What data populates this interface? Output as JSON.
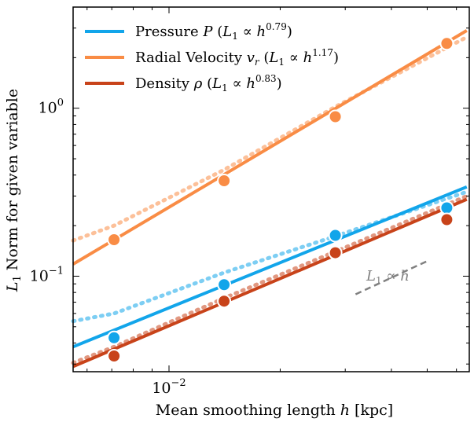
{
  "chart_data": {
    "type": "line",
    "xscale": "log",
    "yscale": "log",
    "xlim": [
      0.0055,
      0.065
    ],
    "ylim": [
      0.027,
      4.0
    ],
    "xlabel_parts": {
      "pre": "Mean smoothing length ",
      "var": "h",
      "post": " [kpc]"
    },
    "ylabel_parts": {
      "var": "L",
      "sub": "1",
      "post": " Norm for given variable"
    },
    "x_ticks": [
      {
        "value": 0.01,
        "base": "10",
        "exp": "−2"
      }
    ],
    "y_ticks": [
      {
        "value": 0.1,
        "base": "10",
        "exp": "−1"
      },
      {
        "value": 1.0,
        "base": "10",
        "exp": "0"
      }
    ],
    "grid": false,
    "legend_position": "top-left",
    "series": [
      {
        "key": "pressure",
        "label_name": "Pressure ",
        "label_sym": "P",
        "label_sub": "",
        "slope": "0.79",
        "color": "#12a5ea",
        "points": [
          [
            0.0071,
            0.043
          ],
          [
            0.0141,
            0.089
          ],
          [
            0.0282,
            0.175
          ],
          [
            0.0565,
            0.255
          ]
        ],
        "fit": [
          [
            0.0055,
            0.038
          ],
          [
            0.064,
            0.34
          ]
        ],
        "dotted": [
          [
            0.0055,
            0.054
          ],
          [
            0.0071,
            0.06
          ],
          [
            0.0141,
            0.105
          ],
          [
            0.0282,
            0.173
          ],
          [
            0.064,
            0.318
          ]
        ]
      },
      {
        "key": "velocity",
        "label_name": "Radial Velocity ",
        "label_sym": "v",
        "label_sub": "r",
        "slope": "1.17",
        "color": "#f98c45",
        "points": [
          [
            0.0071,
            0.165
          ],
          [
            0.0141,
            0.37
          ],
          [
            0.0282,
            0.89
          ],
          [
            0.0565,
            2.43
          ]
        ],
        "fit": [
          [
            0.0055,
            0.118
          ],
          [
            0.064,
            2.9
          ]
        ],
        "dotted": [
          [
            0.0055,
            0.163
          ],
          [
            0.0071,
            0.2
          ],
          [
            0.0141,
            0.43
          ],
          [
            0.0282,
            1.02
          ],
          [
            0.064,
            2.65
          ]
        ]
      },
      {
        "key": "density",
        "label_name": "Density ",
        "label_sym": "ρ",
        "label_sub": "",
        "slope": "0.83",
        "color": "#c8431a",
        "points": [
          [
            0.0071,
            0.0335
          ],
          [
            0.0141,
            0.071
          ],
          [
            0.0282,
            0.138
          ],
          [
            0.0565,
            0.217
          ]
        ],
        "fit": [
          [
            0.0055,
            0.029
          ],
          [
            0.064,
            0.287
          ]
        ],
        "dotted": [
          [
            0.0055,
            0.0305
          ],
          [
            0.0071,
            0.038
          ],
          [
            0.0141,
            0.074
          ],
          [
            0.0282,
            0.14
          ],
          [
            0.064,
            0.3
          ]
        ]
      }
    ],
    "reference": {
      "label_var": "L",
      "label_sub": "1",
      "label_post": " ∝ ",
      "label_h": "h",
      "color": "#808080",
      "line": [
        [
          0.032,
          0.078
        ],
        [
          0.05,
          0.123
        ]
      ]
    }
  }
}
